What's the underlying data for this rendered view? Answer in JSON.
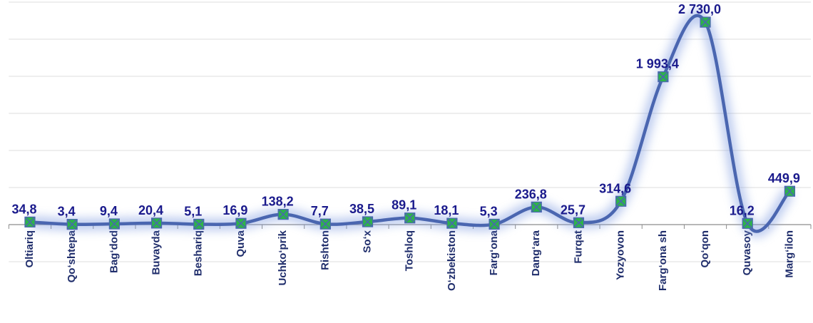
{
  "chart_data": {
    "type": "line",
    "categories": [
      "Oltiariq",
      "Qo‘shtepa",
      "Bag‘dod",
      "Buvayda",
      "Beshariq",
      "Quva",
      "Uchko‘prik",
      "Rishton",
      "So‘x",
      "Toshloq",
      "O‘zbekiston",
      "Farg‘ona",
      "Dang‘ara",
      "Furqat",
      "Yozyovon",
      "Farg‘ona sh",
      "Qo‘qon",
      "Quvasoy",
      "Marg‘ilon"
    ],
    "values": [
      34.8,
      3.4,
      9.4,
      20.4,
      5.1,
      16.9,
      138.2,
      7.7,
      38.5,
      89.1,
      18.1,
      5.3,
      236.8,
      25.7,
      314.6,
      1993.4,
      2730.0,
      16.2,
      449.9
    ],
    "value_labels": [
      "34,8",
      "3,4",
      "9,4",
      "20,4",
      "5,1",
      "16,9",
      "138,2",
      "7,7",
      "38,5",
      "89,1",
      "18,1",
      "5,3",
      "236,8",
      "25,7",
      "314,6",
      "1 993,4",
      "2 730,0",
      "16,2",
      "449,9"
    ],
    "color": "#4a66b0",
    "marker_color": "#2db34a",
    "ylim": [
      -500,
      3000
    ],
    "yticks": [
      -500,
      0,
      500,
      1000,
      1500,
      2000,
      2500,
      3000
    ],
    "grid": true
  }
}
